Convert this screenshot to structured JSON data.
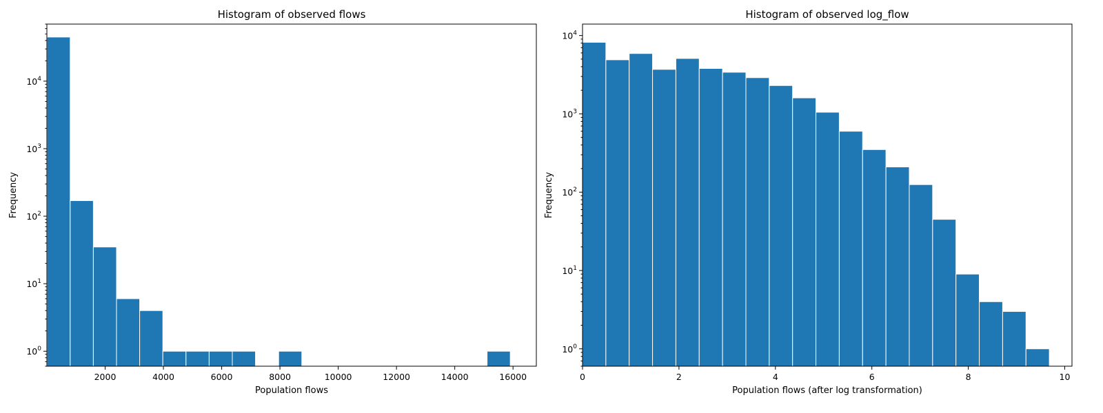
{
  "chart_data": [
    {
      "type": "bar",
      "title": "Histogram of observed flows",
      "xlabel": "Population flows",
      "ylabel": "Frequency",
      "yscale": "log",
      "xlim": [
        0,
        16800
      ],
      "ylim": [
        0.6,
        70000
      ],
      "xticks": [
        2000,
        4000,
        6000,
        8000,
        10000,
        12000,
        14000,
        16000
      ],
      "xtick_labels": [
        "2000",
        "4000",
        "6000",
        "8000",
        "10000",
        "12000",
        "14000",
        "16000"
      ],
      "yticks": [
        1,
        10,
        100,
        1000,
        10000
      ],
      "bin_edges": [
        5,
        800,
        1595,
        2390,
        3185,
        3980,
        4775,
        5570,
        6365,
        7160,
        7955,
        8750,
        9545,
        10340,
        11135,
        11930,
        12725,
        13520,
        14315,
        15110,
        15905
      ],
      "values": [
        45000,
        170,
        35,
        6,
        4,
        1,
        1,
        1,
        1,
        0,
        1,
        0,
        0,
        0,
        0,
        0,
        0,
        0,
        0,
        1
      ],
      "grid": false,
      "legend": "none"
    },
    {
      "type": "bar",
      "title": "Histogram of observed log_flow",
      "xlabel": "Population flows (after log transformation)",
      "ylabel": "Frequency",
      "yscale": "log",
      "xlim": [
        0,
        10.15
      ],
      "ylim": [
        0.6,
        14000
      ],
      "xticks": [
        0,
        2,
        4,
        6,
        8,
        10
      ],
      "xtick_labels": [
        "0",
        "2",
        "4",
        "6",
        "8",
        "10"
      ],
      "yticks": [
        1,
        10,
        100,
        1000,
        10000
      ],
      "bin_edges": [
        0,
        0.484,
        0.968,
        1.452,
        1.936,
        2.42,
        2.904,
        3.388,
        3.872,
        4.356,
        4.84,
        5.324,
        5.808,
        6.292,
        6.776,
        7.26,
        7.744,
        8.228,
        8.712,
        9.196,
        9.68
      ],
      "values": [
        8200,
        4900,
        5900,
        3700,
        5100,
        3800,
        3400,
        2900,
        2300,
        1600,
        1050,
        600,
        350,
        210,
        125,
        45,
        9,
        4,
        3,
        1
      ],
      "grid": false,
      "legend": "none"
    }
  ]
}
